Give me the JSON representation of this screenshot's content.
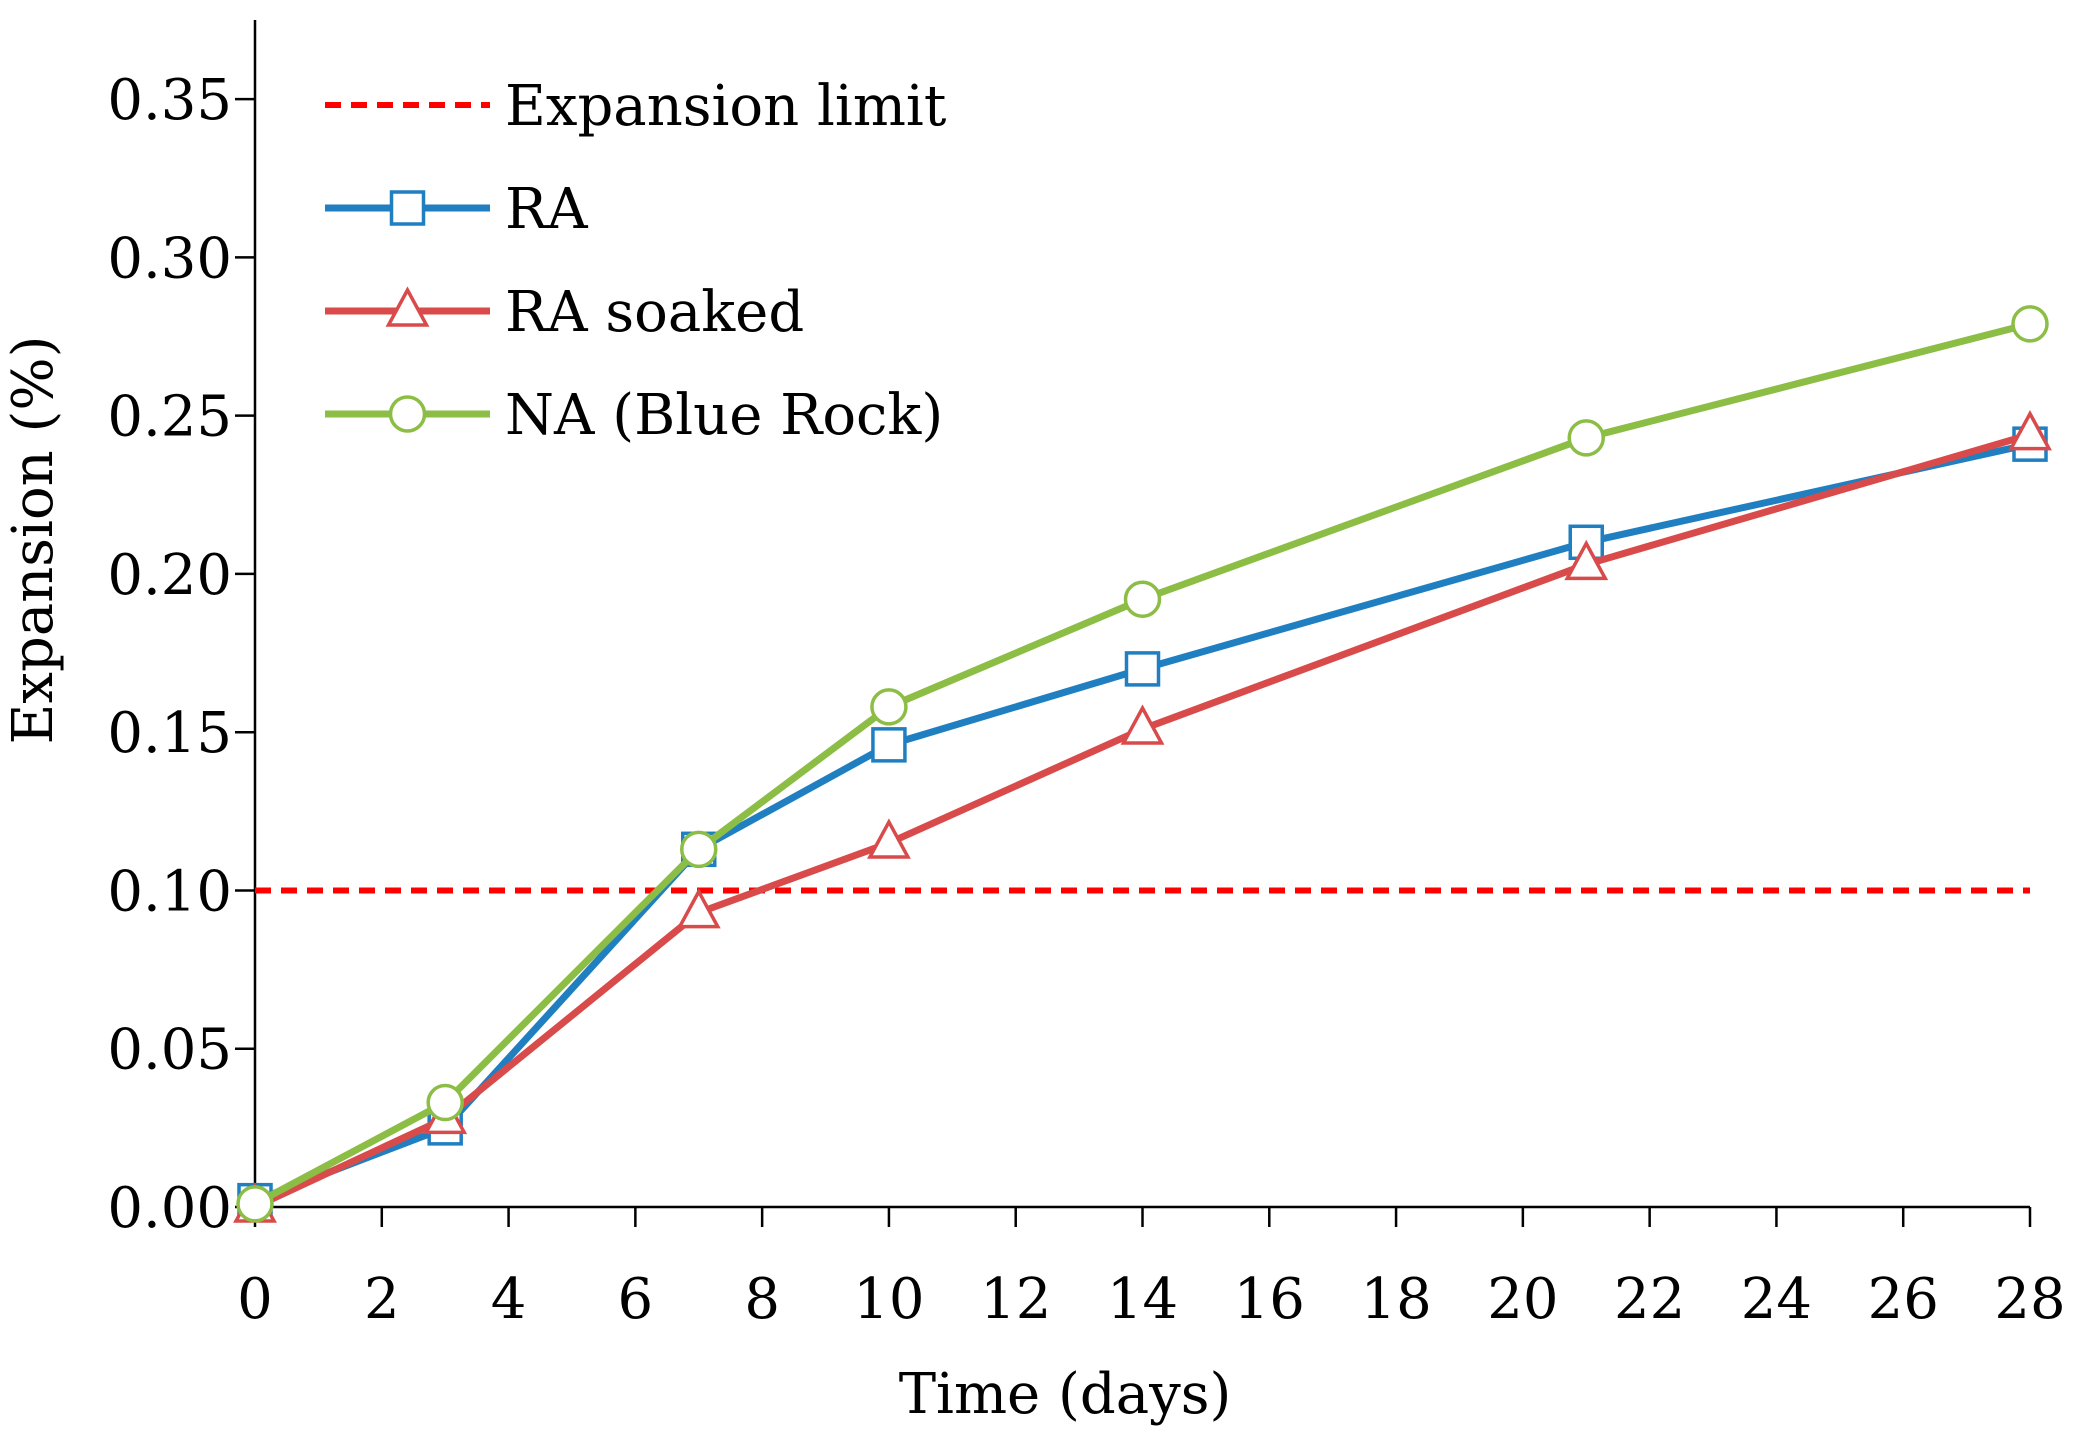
{
  "chart_data": {
    "type": "line",
    "title": "",
    "xlabel": "Time (days)",
    "ylabel": "Expansion (%)",
    "xlim": [
      0,
      28
    ],
    "ylim": [
      0,
      0.375
    ],
    "xticks": [
      0,
      2,
      4,
      6,
      8,
      10,
      12,
      14,
      16,
      18,
      20,
      22,
      24,
      26,
      28
    ],
    "xtick_labels": [
      "0",
      "2",
      "4",
      "6",
      "8",
      "10",
      "12",
      "14",
      "16",
      "18",
      "20",
      "22",
      "24",
      "26",
      "28"
    ],
    "yticks": [
      0,
      0.05,
      0.1,
      0.15,
      0.2,
      0.25,
      0.3,
      0.35
    ],
    "ytick_labels": [
      "0.00",
      "0.05",
      "0.10",
      "0.15",
      "0.20",
      "0.25",
      "0.30",
      "0.35"
    ],
    "grid": false,
    "legend_position": "top-left",
    "expansion_limit": {
      "name": "Expansion limit",
      "value": 0.1,
      "x_range": [
        0,
        28
      ],
      "color": "#ff0000",
      "style": "dashed"
    },
    "series": [
      {
        "name": "RA",
        "color": "#1f7fc1",
        "marker": "square",
        "x": [
          0,
          3,
          7,
          10,
          14,
          21,
          28
        ],
        "values": [
          0.002,
          0.025,
          0.113,
          0.146,
          0.17,
          0.21,
          0.241
        ]
      },
      {
        "name": "RA soaked",
        "color": "#d94b4b",
        "marker": "triangle",
        "x": [
          0,
          3,
          7,
          10,
          14,
          21,
          28
        ],
        "values": [
          0.0,
          0.028,
          0.093,
          0.115,
          0.151,
          0.203,
          0.244
        ]
      },
      {
        "name": "NA (Blue Rock)",
        "color": "#8cbd45",
        "marker": "circle",
        "x": [
          0,
          3,
          7,
          10,
          14,
          21,
          28
        ],
        "values": [
          0.001,
          0.033,
          0.113,
          0.158,
          0.192,
          0.243,
          0.279
        ]
      }
    ]
  }
}
